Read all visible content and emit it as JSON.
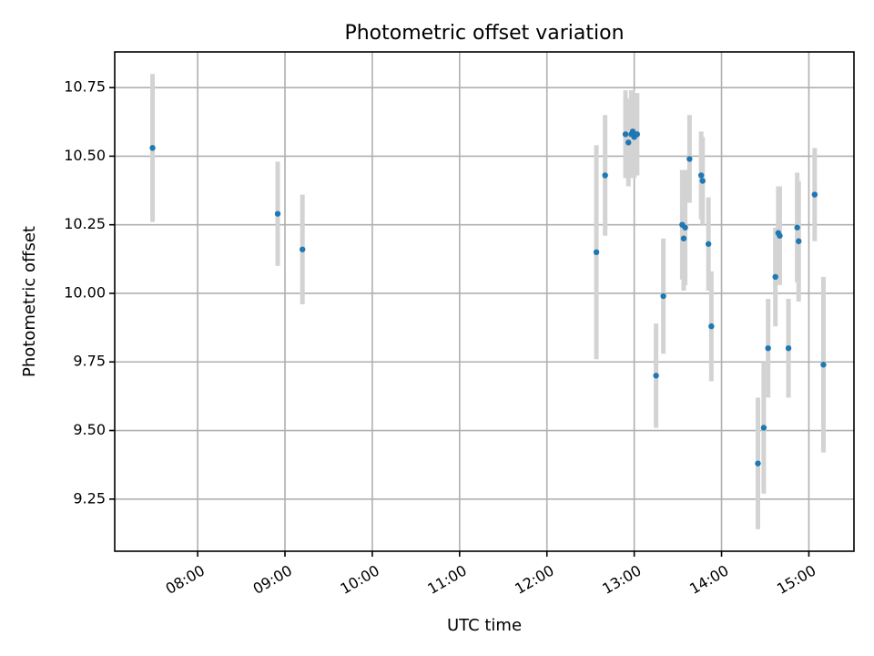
{
  "chart_data": {
    "type": "scatter",
    "title": "Photometric offset variation",
    "xlabel": "UTC time",
    "ylabel": "Photometric offset",
    "xlim": [
      "07:03",
      "15:31"
    ],
    "ylim": [
      9.06,
      10.88
    ],
    "x_ticks": [
      "08:00",
      "09:00",
      "10:00",
      "11:00",
      "12:00",
      "13:00",
      "14:00",
      "15:00"
    ],
    "y_ticks": [
      "9.25",
      "9.50",
      "9.75",
      "10.00",
      "10.25",
      "10.50",
      "10.75"
    ],
    "grid": true,
    "colors": {
      "point": "#1f77b4",
      "errorbar": "#d3d3d3",
      "grid": "#b0b0b0"
    },
    "points": [
      {
        "x": "07:29",
        "y": 10.53,
        "err": 0.27
      },
      {
        "x": "08:55",
        "y": 10.29,
        "err": 0.19
      },
      {
        "x": "09:12",
        "y": 10.16,
        "err": 0.2
      },
      {
        "x": "12:34",
        "y": 10.15,
        "err": 0.39
      },
      {
        "x": "12:40",
        "y": 10.43,
        "err": 0.22
      },
      {
        "x": "12:54",
        "y": 10.58,
        "err": 0.16
      },
      {
        "x": "12:56",
        "y": 10.55,
        "err": 0.16
      },
      {
        "x": "12:58",
        "y": 10.58,
        "err": 0.16
      },
      {
        "x": "12:59",
        "y": 10.59,
        "err": 0.15
      },
      {
        "x": "13:00",
        "y": 10.57,
        "err": 0.15
      },
      {
        "x": "13:02",
        "y": 10.58,
        "err": 0.15
      },
      {
        "x": "13:15",
        "y": 9.7,
        "err": 0.19
      },
      {
        "x": "13:20",
        "y": 9.99,
        "err": 0.21
      },
      {
        "x": "13:33",
        "y": 10.25,
        "err": 0.2
      },
      {
        "x": "13:34",
        "y": 10.2,
        "err": 0.19
      },
      {
        "x": "13:35",
        "y": 10.24,
        "err": 0.21
      },
      {
        "x": "13:38",
        "y": 10.49,
        "err": 0.16
      },
      {
        "x": "13:46",
        "y": 10.43,
        "err": 0.16
      },
      {
        "x": "13:47",
        "y": 10.41,
        "err": 0.16
      },
      {
        "x": "13:51",
        "y": 10.18,
        "err": 0.17
      },
      {
        "x": "13:53",
        "y": 9.88,
        "err": 0.2
      },
      {
        "x": "14:25",
        "y": 9.38,
        "err": 0.24
      },
      {
        "x": "14:29",
        "y": 9.51,
        "err": 0.24
      },
      {
        "x": "14:32",
        "y": 9.8,
        "err": 0.18
      },
      {
        "x": "14:37",
        "y": 10.06,
        "err": 0.18
      },
      {
        "x": "14:39",
        "y": 10.22,
        "err": 0.17
      },
      {
        "x": "14:40",
        "y": 10.21,
        "err": 0.18
      },
      {
        "x": "14:46",
        "y": 9.8,
        "err": 0.18
      },
      {
        "x": "14:52",
        "y": 10.24,
        "err": 0.2
      },
      {
        "x": "14:53",
        "y": 10.19,
        "err": 0.22
      },
      {
        "x": "15:04",
        "y": 10.36,
        "err": 0.17
      },
      {
        "x": "15:10",
        "y": 9.74,
        "err": 0.32
      }
    ]
  }
}
